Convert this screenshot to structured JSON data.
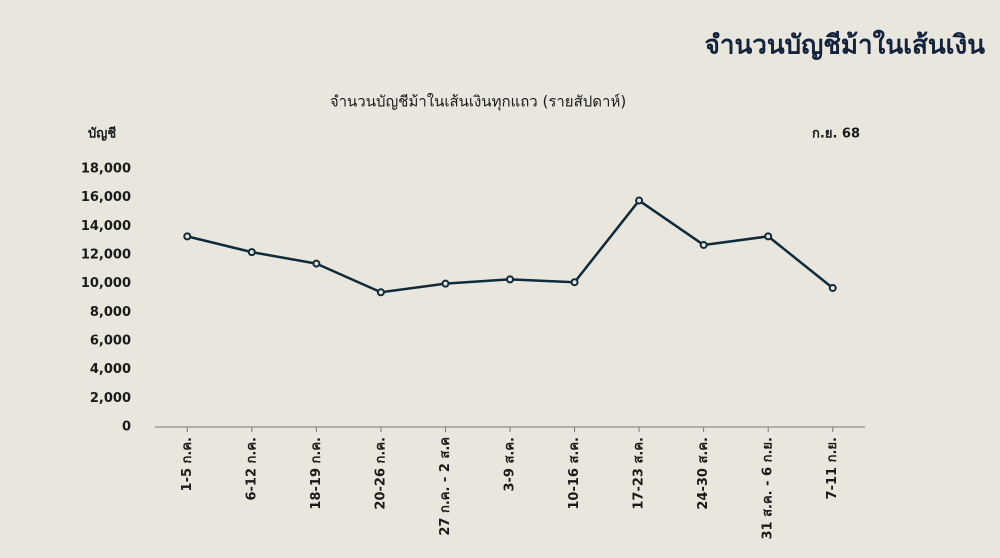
{
  "chart_data": {
    "type": "line",
    "title": "จำนวนบัญชีม้าในเส้นเงิน",
    "subtitle": "จำนวนบัญชีม้าในเส้นเงินทุกแถว (รายสัปดาห์)",
    "y_label": "บัญชี",
    "annotation": "ก.ย. 68",
    "categories": [
      "1-5 ก.ค.",
      "6-12 ก.ค.",
      "18-19 ก.ค.",
      "20-26 ก.ค.",
      "27 ก.ค. - 2 ส.ค",
      "3-9 ส.ค.",
      "10-16 ส.ค.",
      "17-23 ส.ค.",
      "24-30 ส.ค.",
      "31 ส.ค. - 6 ก.ย.",
      "7-11 ก.ย."
    ],
    "values": [
      13300,
      12200,
      11400,
      9400,
      10000,
      10300,
      10100,
      15800,
      12700,
      13300,
      9700
    ],
    "color": "#0f2a3a",
    "ylim": [
      0,
      18000
    ],
    "yticks": [
      0,
      {
        "value": 2000,
        "label": "2,000"
      },
      {
        "value": 4000,
        "label": "4,000"
      },
      {
        "value": 6000,
        "label": "6,000"
      },
      {
        "value": 8000,
        "label": "8,000"
      },
      {
        "value": 10000,
        "label": "10,000"
      },
      {
        "value": 12000,
        "label": "12,000"
      },
      {
        "value": 14000,
        "label": "14,000"
      },
      {
        "value": 16000,
        "label": "16,000"
      },
      {
        "value": 18000,
        "label": "18,000"
      }
    ],
    "grid": false
  }
}
